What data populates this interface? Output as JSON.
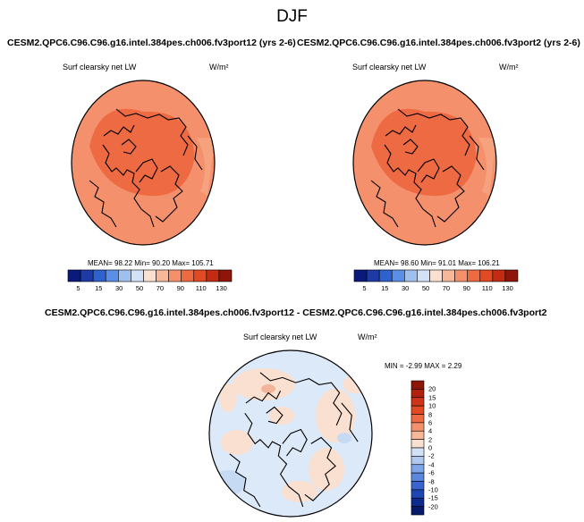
{
  "figure": {
    "title": "DJF"
  },
  "panels": [
    {
      "title": "CESM2.QPC6.C96.C96.g16.intel.384pes.ch006.fv3port12 (yrs 2-6)",
      "variable": "Surf clearsky net LW",
      "units": "W/m²",
      "stats": "MEAN=  98.22  Min=  90.20  Max= 105.71",
      "colorbar": {
        "ticks": [
          "5",
          "15",
          "30",
          "50",
          "70",
          "90",
          "110",
          "130"
        ],
        "colors": [
          "#0a1a7a",
          "#1d3aa6",
          "#2f62cf",
          "#5b8ee6",
          "#9fbfee",
          "#d2e1f5",
          "#fae0d0",
          "#f7b89a",
          "#f4916c",
          "#ee6a42",
          "#e14a22",
          "#c32c13",
          "#8d1608"
        ]
      },
      "fields": {
        "outer": "#f4916c",
        "inner": "#ee6a42"
      }
    },
    {
      "title": "CESM2.QPC6.C96.C96.g16.intel.384pes.ch006.fv3port2 (yrs 2-6)",
      "variable": "Surf clearsky net LW",
      "units": "W/m²",
      "stats": "MEAN=  98.60  Min=  91.01  Max= 106.21",
      "colorbar": {
        "ticks": [
          "5",
          "15",
          "30",
          "50",
          "70",
          "90",
          "110",
          "130"
        ],
        "colors": [
          "#0a1a7a",
          "#1d3aa6",
          "#2f62cf",
          "#5b8ee6",
          "#9fbfee",
          "#d2e1f5",
          "#fae0d0",
          "#f7b89a",
          "#f4916c",
          "#ee6a42",
          "#e14a22",
          "#c32c13",
          "#8d1608"
        ]
      },
      "fields": {
        "outer": "#f4916c",
        "inner": "#ee6a42"
      }
    }
  ],
  "diff": {
    "title": "CESM2.QPC6.C96.C96.g16.intel.384pes.ch006.fv3port12 - CESM2.QPC6.C96.C96.g16.intel.384pes.ch006.fv3port2",
    "variable": "Surf clearsky net LW",
    "units": "W/m²",
    "stats": "MIN =  -2.99 MAX =   2.29",
    "colorbar": {
      "ticks": [
        "20",
        "15",
        "10",
        "8",
        "6",
        "4",
        "2",
        "0",
        "-2",
        "-4",
        "-6",
        "-8",
        "-10",
        "-15",
        "-20"
      ],
      "colors": [
        "#8d1608",
        "#b0200d",
        "#cf3418",
        "#e14a22",
        "#ee6a42",
        "#f4916c",
        "#f7b89a",
        "#fae0d0",
        "#d2e1f5",
        "#aec8ef",
        "#7fa6e8",
        "#5a86dd",
        "#3a64cf",
        "#1f44b3",
        "#0d2a8f",
        "#061a6b"
      ]
    },
    "fields": {
      "base": "#dce9f8",
      "positive": "#fae0d0"
    }
  }
}
